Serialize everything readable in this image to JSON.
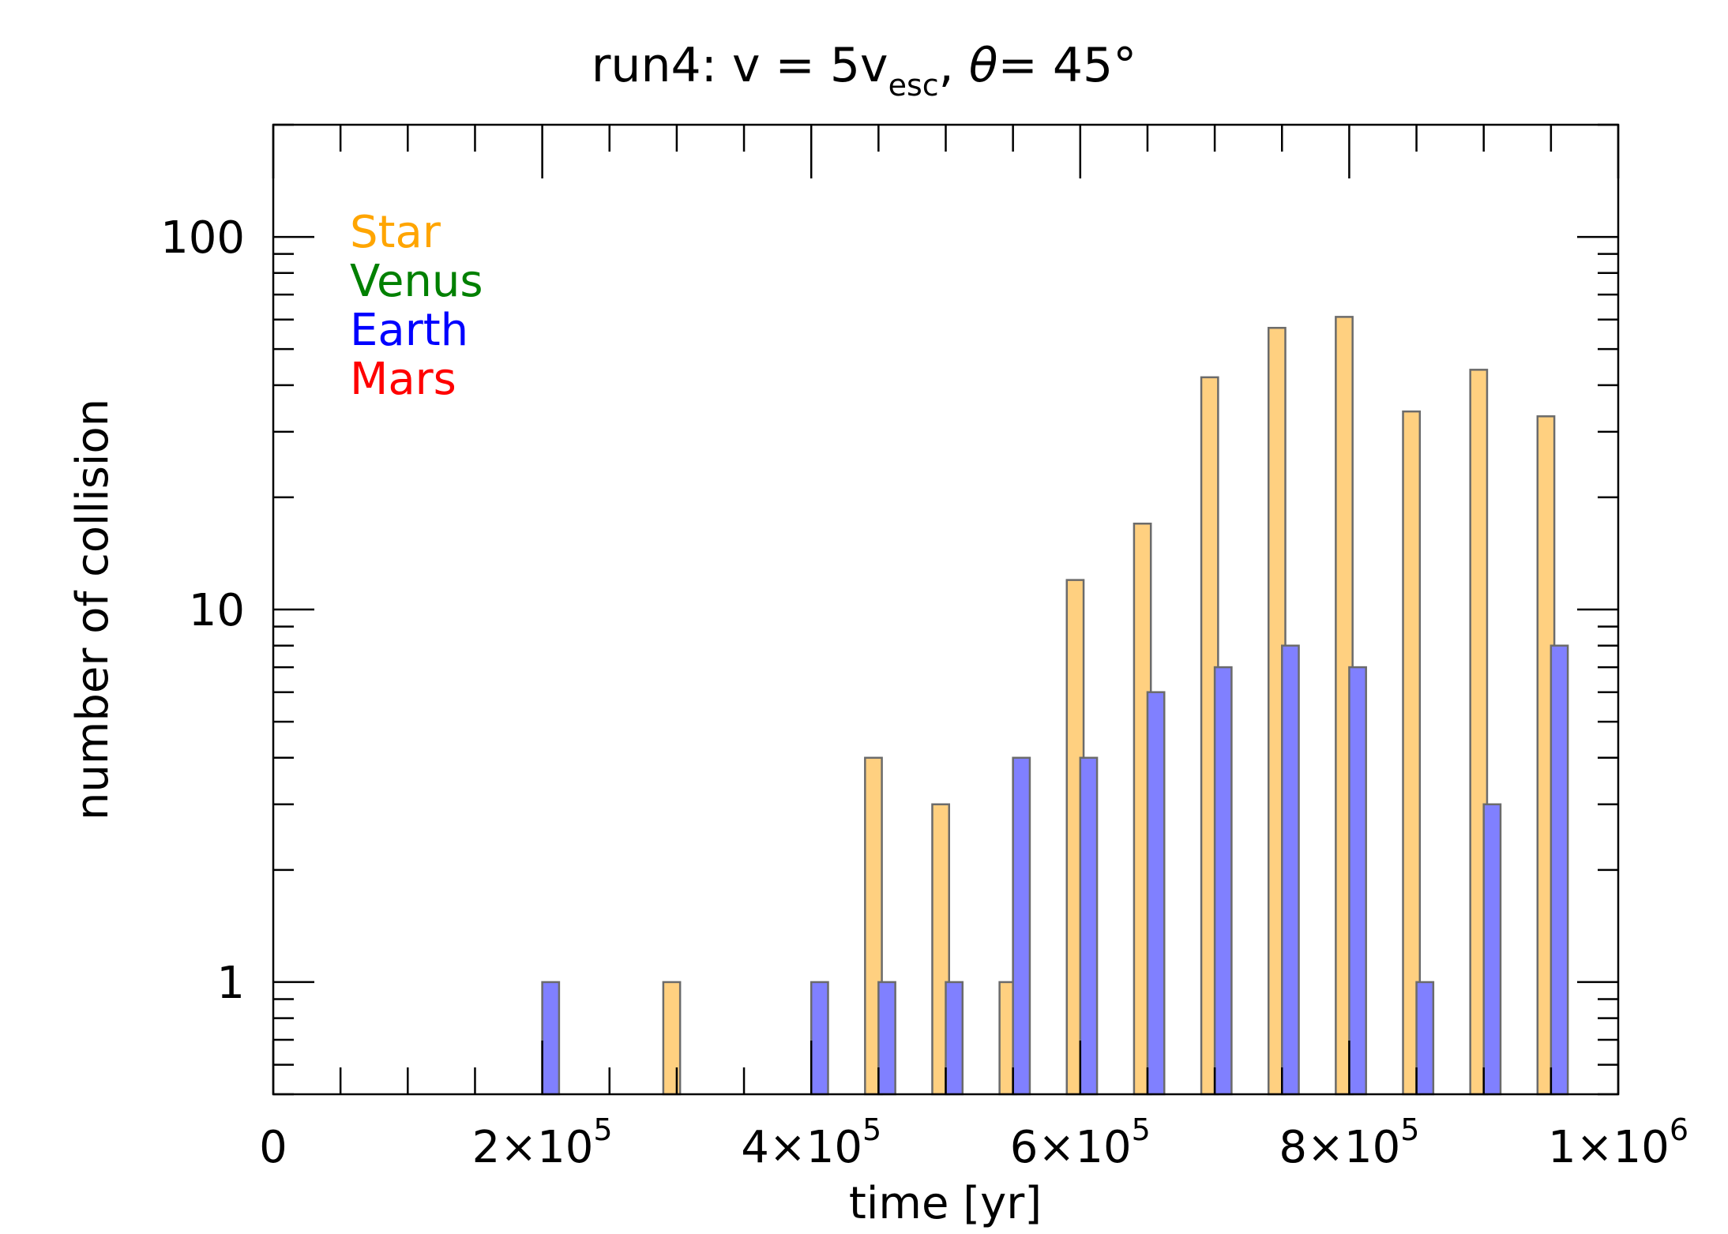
{
  "chart_data": {
    "type": "bar",
    "title": {
      "prefix": "run4: v = 5v",
      "subscript": "esc",
      "middle": ", ",
      "theta": "θ",
      "suffix": "= 45°"
    },
    "xlabel": "time [yr]",
    "ylabel": "number of collision",
    "x_scale": "linear",
    "y_scale": "log",
    "xlim": [
      0,
      1000000
    ],
    "ylim": [
      0.5,
      200
    ],
    "x_ticks": [
      {
        "value": 0,
        "mantissa": "0",
        "exponent": ""
      },
      {
        "value": 200000,
        "mantissa": "2×10",
        "exponent": "5"
      },
      {
        "value": 400000,
        "mantissa": "4×10",
        "exponent": "5"
      },
      {
        "value": 600000,
        "mantissa": "6×10",
        "exponent": "5"
      },
      {
        "value": 800000,
        "mantissa": "8×10",
        "exponent": "5"
      },
      {
        "value": 1000000,
        "mantissa": "1×10",
        "exponent": "6"
      }
    ],
    "y_ticks": [
      {
        "value": 1,
        "label": "1"
      },
      {
        "value": 10,
        "label": "10"
      },
      {
        "value": 100,
        "label": "100"
      }
    ],
    "grid": false,
    "legend_position": "top-left",
    "legend": [
      {
        "name": "Star",
        "color": "#ffa500"
      },
      {
        "name": "Venus",
        "color": "#008000"
      },
      {
        "name": "Earth",
        "color": "#0000ff"
      },
      {
        "name": "Mars",
        "color": "#ff0000"
      }
    ],
    "series": [
      {
        "name": "Star",
        "fill": "#ffd080",
        "x": [
          290000,
          440000,
          490000,
          540000,
          590000,
          640000,
          690000,
          740000,
          790000,
          840000,
          890000,
          940000
        ],
        "values": [
          1,
          4,
          3,
          1,
          12,
          17,
          42,
          57,
          61,
          34,
          44,
          33
        ]
      },
      {
        "name": "Earth",
        "fill": "#8080ff",
        "x": [
          200000,
          400000,
          450000,
          500000,
          550000,
          600000,
          650000,
          700000,
          750000,
          800000,
          850000,
          900000,
          950000
        ],
        "values": [
          1,
          1,
          1,
          1,
          4,
          4,
          6,
          7,
          8,
          7,
          1,
          3,
          8
        ]
      }
    ],
    "bar_width": 12500
  }
}
